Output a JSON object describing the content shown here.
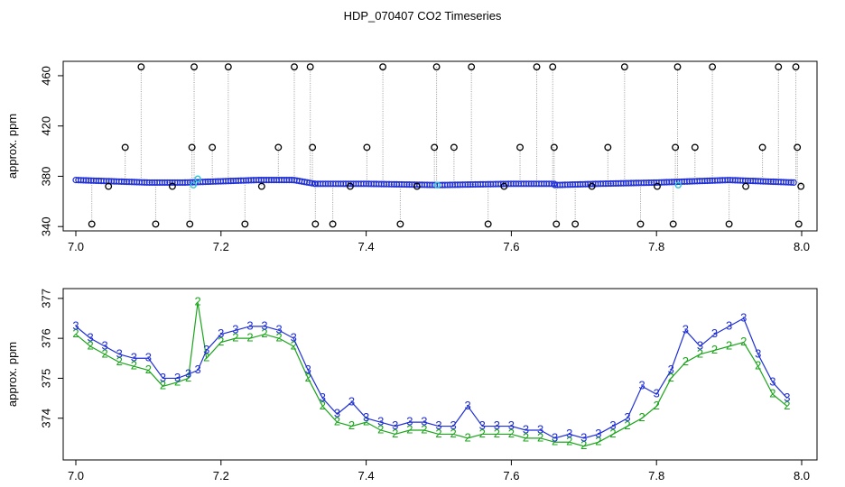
{
  "title": "HDP_070407  CO2 Timeseries",
  "colors": {
    "marker_black": "#000000",
    "marker_blue": "#1f2fd6",
    "marker_cyan": "#2ec4d6",
    "series2": "#1aa51a",
    "series3": "#1f2fd6",
    "dotted_line": "#9a9a9a"
  },
  "chart_data": [
    {
      "type": "scatter",
      "ylabel": "approx. ppm",
      "xlabel": "",
      "xlim": [
        7.0,
        8.0
      ],
      "ylim": [
        338,
        470
      ],
      "xticks": [
        "7.0",
        "7.2",
        "7.4",
        "7.6",
        "7.8",
        "8.0"
      ],
      "yticks": [
        "340",
        "380",
        "420",
        "460"
      ],
      "baseline_segments": [
        {
          "x": [
            7.0,
            7.05,
            7.1,
            7.15,
            7.2,
            7.25,
            7.3,
            7.33
          ],
          "y": [
            377,
            376,
            375,
            375,
            376,
            377,
            377,
            374
          ]
        },
        {
          "x": [
            7.33,
            7.4,
            7.5,
            7.6,
            7.66
          ],
          "y": [
            374,
            374,
            373,
            374,
            374
          ]
        },
        {
          "x": [
            7.66,
            7.72,
            7.8,
            7.85,
            7.9,
            7.99
          ],
          "y": [
            373,
            374,
            375,
            376,
            377,
            375
          ]
        }
      ],
      "spikes": [
        {
          "x": 7.022,
          "y": 342
        },
        {
          "x": 7.045,
          "y": 372
        },
        {
          "x": 7.068,
          "y": 403
        },
        {
          "x": 7.09,
          "y": 467
        },
        {
          "x": 7.11,
          "y": 342
        },
        {
          "x": 7.133,
          "y": 372
        },
        {
          "x": 7.157,
          "y": 342
        },
        {
          "x": 7.16,
          "y": 403
        },
        {
          "x": 7.163,
          "y": 467
        },
        {
          "x": 7.188,
          "y": 403
        },
        {
          "x": 7.21,
          "y": 467
        },
        {
          "x": 7.233,
          "y": 342
        },
        {
          "x": 7.256,
          "y": 372
        },
        {
          "x": 7.279,
          "y": 403
        },
        {
          "x": 7.301,
          "y": 467
        },
        {
          "x": 7.323,
          "y": 467
        },
        {
          "x": 7.326,
          "y": 403
        },
        {
          "x": 7.33,
          "y": 342
        },
        {
          "x": 7.354,
          "y": 342
        },
        {
          "x": 7.378,
          "y": 372
        },
        {
          "x": 7.401,
          "y": 403
        },
        {
          "x": 7.423,
          "y": 467
        },
        {
          "x": 7.447,
          "y": 342
        },
        {
          "x": 7.47,
          "y": 372
        },
        {
          "x": 7.494,
          "y": 403
        },
        {
          "x": 7.497,
          "y": 467
        },
        {
          "x": 7.521,
          "y": 403
        },
        {
          "x": 7.545,
          "y": 467
        },
        {
          "x": 7.568,
          "y": 342
        },
        {
          "x": 7.59,
          "y": 372
        },
        {
          "x": 7.612,
          "y": 403
        },
        {
          "x": 7.635,
          "y": 467
        },
        {
          "x": 7.657,
          "y": 467
        },
        {
          "x": 7.659,
          "y": 403
        },
        {
          "x": 7.662,
          "y": 342
        },
        {
          "x": 7.688,
          "y": 342
        },
        {
          "x": 7.711,
          "y": 372
        },
        {
          "x": 7.733,
          "y": 403
        },
        {
          "x": 7.756,
          "y": 467
        },
        {
          "x": 7.778,
          "y": 342
        },
        {
          "x": 7.801,
          "y": 372
        },
        {
          "x": 7.823,
          "y": 342
        },
        {
          "x": 7.826,
          "y": 403
        },
        {
          "x": 7.829,
          "y": 467
        },
        {
          "x": 7.853,
          "y": 403
        },
        {
          "x": 7.877,
          "y": 467
        },
        {
          "x": 7.9,
          "y": 342
        },
        {
          "x": 7.923,
          "y": 372
        },
        {
          "x": 7.946,
          "y": 403
        },
        {
          "x": 7.968,
          "y": 467
        },
        {
          "x": 7.992,
          "y": 467
        },
        {
          "x": 7.994,
          "y": 403
        },
        {
          "x": 7.996,
          "y": 342
        },
        {
          "x": 7.999,
          "y": 372
        }
      ],
      "cyan_points": [
        {
          "x": 7.162,
          "y": 373
        },
        {
          "x": 7.168,
          "y": 378
        },
        {
          "x": 7.498,
          "y": 373
        },
        {
          "x": 7.83,
          "y": 373
        }
      ]
    },
    {
      "type": "line",
      "ylabel": "approx. ppm",
      "xlabel": "",
      "xlim": [
        7.0,
        8.0
      ],
      "ylim": [
        373.0,
        377.2
      ],
      "xticks": [
        "7.0",
        "7.2",
        "7.4",
        "7.6",
        "7.8",
        "8.0"
      ],
      "yticks": [
        "374",
        "375",
        "376",
        "377"
      ],
      "series": [
        {
          "marker": "2",
          "x": [
            7.0,
            7.02,
            7.04,
            7.06,
            7.08,
            7.1,
            7.12,
            7.14,
            7.155,
            7.168,
            7.18,
            7.2,
            7.22,
            7.24,
            7.26,
            7.28,
            7.3,
            7.32,
            7.34,
            7.36,
            7.38,
            7.4,
            7.42,
            7.44,
            7.46,
            7.48,
            7.5,
            7.52,
            7.54,
            7.56,
            7.58,
            7.6,
            7.62,
            7.64,
            7.66,
            7.68,
            7.7,
            7.72,
            7.74,
            7.76,
            7.78,
            7.8,
            7.82,
            7.84,
            7.86,
            7.88,
            7.9,
            7.92,
            7.94,
            7.96,
            7.98
          ],
          "y": [
            376.1,
            375.8,
            375.6,
            375.4,
            375.3,
            375.2,
            374.8,
            374.9,
            375.0,
            376.9,
            375.5,
            375.9,
            376.0,
            376.0,
            376.1,
            376.0,
            375.8,
            375.0,
            374.3,
            373.9,
            373.8,
            373.9,
            373.7,
            373.6,
            373.7,
            373.7,
            373.6,
            373.6,
            373.5,
            373.6,
            373.6,
            373.6,
            373.5,
            373.5,
            373.4,
            373.4,
            373.3,
            373.4,
            373.6,
            373.8,
            374.0,
            374.3,
            375.0,
            375.4,
            375.6,
            375.7,
            375.8,
            375.9,
            375.3,
            374.6,
            374.3
          ]
        },
        {
          "marker": "3",
          "x": [
            7.0,
            7.02,
            7.04,
            7.06,
            7.08,
            7.1,
            7.12,
            7.14,
            7.155,
            7.168,
            7.18,
            7.2,
            7.22,
            7.24,
            7.26,
            7.28,
            7.3,
            7.32,
            7.34,
            7.36,
            7.38,
            7.4,
            7.42,
            7.44,
            7.46,
            7.48,
            7.5,
            7.52,
            7.54,
            7.56,
            7.58,
            7.6,
            7.62,
            7.64,
            7.66,
            7.68,
            7.7,
            7.72,
            7.74,
            7.76,
            7.78,
            7.8,
            7.82,
            7.84,
            7.86,
            7.88,
            7.9,
            7.92,
            7.94,
            7.96,
            7.98
          ],
          "y": [
            376.3,
            376.0,
            375.8,
            375.6,
            375.5,
            375.5,
            375.0,
            375.0,
            375.1,
            375.2,
            375.7,
            376.1,
            376.2,
            376.3,
            376.3,
            376.2,
            376.0,
            375.2,
            374.5,
            374.1,
            374.4,
            374.0,
            373.9,
            373.8,
            373.9,
            373.9,
            373.8,
            373.8,
            374.3,
            373.8,
            373.8,
            373.8,
            373.7,
            373.7,
            373.5,
            373.6,
            373.5,
            373.6,
            373.8,
            374.0,
            374.8,
            374.6,
            375.2,
            376.2,
            375.8,
            376.1,
            376.3,
            376.5,
            375.6,
            374.9,
            374.5
          ]
        }
      ]
    }
  ]
}
